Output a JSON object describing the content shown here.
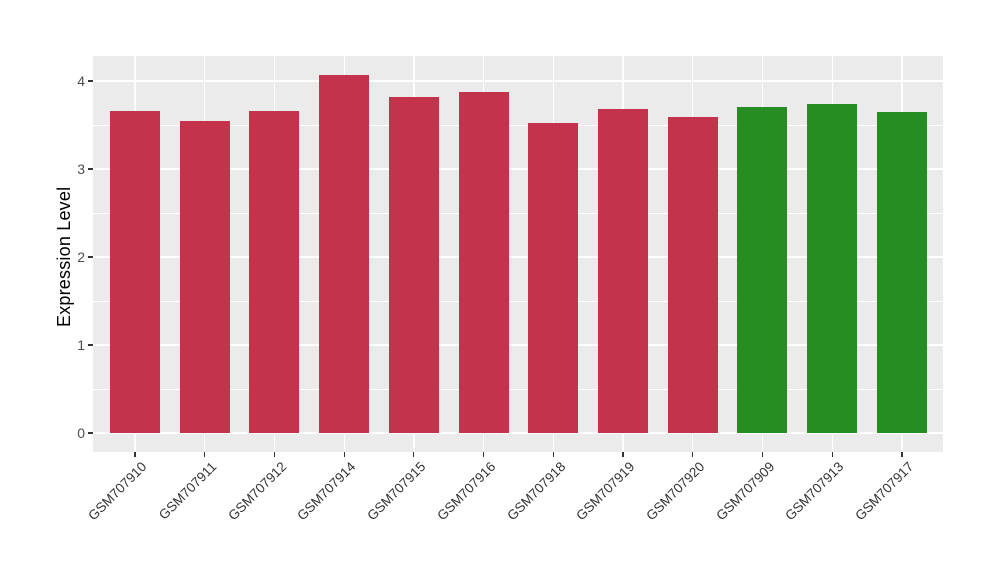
{
  "figure": {
    "y_axis_title": "Expression Level"
  },
  "chart_data": {
    "type": "bar",
    "title": "",
    "xlabel": "",
    "ylabel": "Expression Level",
    "categories": [
      "GSM707910",
      "GSM707911",
      "GSM707912",
      "GSM707914",
      "GSM707915",
      "GSM707916",
      "GSM707918",
      "GSM707919",
      "GSM707920",
      "GSM707909",
      "GSM707913",
      "GSM707917"
    ],
    "values": [
      3.66,
      3.54,
      3.66,
      4.07,
      3.82,
      3.87,
      3.52,
      3.68,
      3.59,
      3.7,
      3.74,
      3.65
    ],
    "bar_colors": [
      "#C3344C",
      "#C3344C",
      "#C3344C",
      "#C3344C",
      "#C3344C",
      "#C3344C",
      "#C3344C",
      "#C3344C",
      "#C3344C",
      "#278D22",
      "#278D22",
      "#278D22"
    ],
    "group_colors": {
      "red": "#C3344C",
      "green": "#278D22"
    },
    "yticks": [
      0,
      1,
      2,
      3,
      4
    ],
    "minor_yticks": [
      0.5,
      1.5,
      2.5,
      3.5
    ],
    "ylim": [
      -0.25,
      4.28
    ],
    "x_tick_angle": 45,
    "grid": "major-and-minor-horizontal, major-vertical-at-categories",
    "legend": "none",
    "panel_background": "#EBEBEB",
    "gridline_color": "#FFFFFF",
    "tick_color": "#333333",
    "axis_text_color": "#4D4D4D"
  }
}
